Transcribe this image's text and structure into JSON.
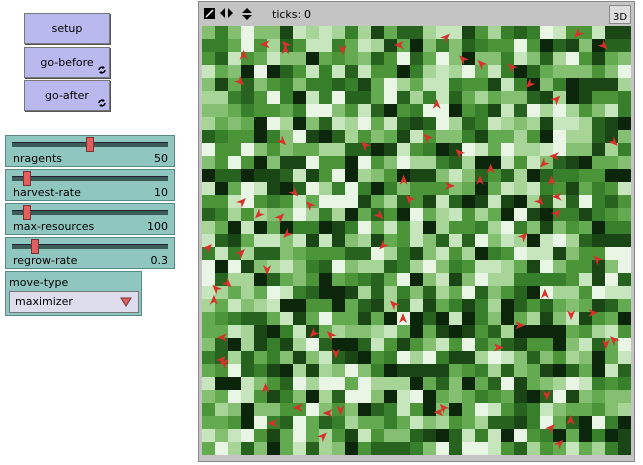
{
  "buttons": [
    {
      "label": "setup"
    },
    {
      "label": "go-before"
    },
    {
      "label": "go-after"
    }
  ],
  "sliders": [
    {
      "name": "nragents",
      "value": 50
    },
    {
      "name": "harvest-rate",
      "value": 10
    },
    {
      "name": "max-resources",
      "value": 100
    },
    {
      "name": "regrow-rate",
      "value": 0.3
    }
  ],
  "chooser": {
    "label": "move-type",
    "value": "maximizer"
  },
  "view": {
    "ticks_label": "ticks:",
    "ticks": 0,
    "button_3d": "3D"
  }
}
